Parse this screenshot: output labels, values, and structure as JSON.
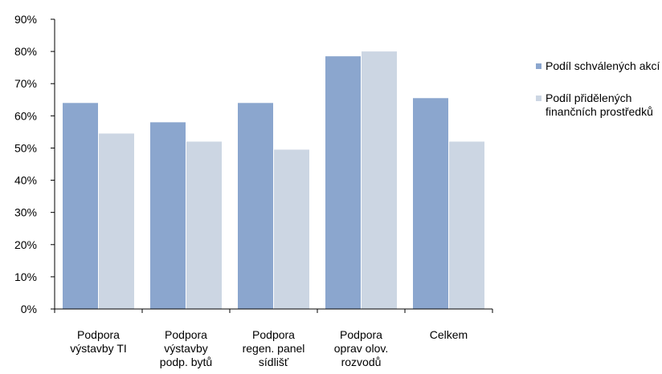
{
  "chart_data": {
    "type": "bar",
    "categories": [
      [
        "Podpora",
        "výstavby  TI"
      ],
      [
        "Podpora",
        "výstavby",
        "podp. bytů"
      ],
      [
        "Podpora",
        "regen. panel",
        "sídlišť"
      ],
      [
        "Podpora",
        "oprav olov.",
        "rozvodů"
      ],
      [
        "Celkem"
      ]
    ],
    "series": [
      {
        "name": "Podíl schválených akcí",
        "values": [
          64,
          58,
          64,
          78.5,
          65.5
        ],
        "color": "#8ba6ce"
      },
      {
        "name": "Podíl přidělených finančních prostředků",
        "values": [
          54.5,
          52,
          49.5,
          80,
          52
        ],
        "color": "#ccd6e3"
      }
    ],
    "ylim": [
      0,
      90
    ],
    "yticks": [
      0,
      10,
      20,
      30,
      40,
      50,
      60,
      70,
      80,
      90
    ],
    "y_tick_format": "percent",
    "grid": false,
    "legend_position": "right",
    "title": "",
    "xlabel": "",
    "ylabel": ""
  },
  "legend": {
    "items": [
      {
        "label": "Podíl schválených akcí"
      },
      {
        "label": "Podíl přidělených finančních prostředků"
      }
    ]
  }
}
